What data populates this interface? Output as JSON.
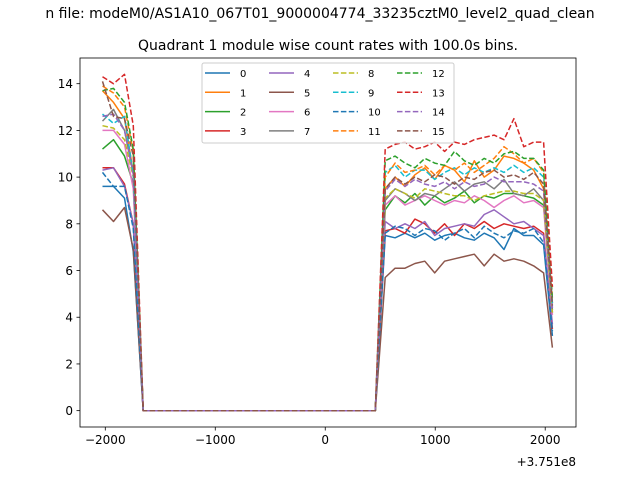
{
  "figure": {
    "suptitle": "n file: modeM0/AS1A10_067T01_9000004774_33235cztM0_level2_quad_clean"
  },
  "chart_data": {
    "type": "line",
    "title": "Quadrant 1 module wise count rates with 100.0s bins.",
    "xlabel": "",
    "ylabel": "",
    "x_offset_label": "+3.751e8",
    "xlim": [
      -2230,
      2280
    ],
    "ylim": [
      -0.7,
      15.1
    ],
    "xticks": [
      -2000,
      -1000,
      0,
      1000,
      2000
    ],
    "xtick_labels": [
      "−2000",
      "−1000",
      "0",
      "1000",
      "2000"
    ],
    "yticks": [
      0,
      2,
      4,
      6,
      8,
      10,
      12,
      14
    ],
    "ytick_labels": [
      "0",
      "2",
      "4",
      "6",
      "8",
      "10",
      "12",
      "14"
    ],
    "grid": false,
    "legend": {
      "placement": "top-center",
      "columns": 4
    },
    "x": [
      -2025,
      -1925,
      -1825,
      -1745,
      -1655,
      -1555,
      -1455,
      -1355,
      -1255,
      -1155,
      -1055,
      -955,
      -855,
      -755,
      -655,
      -555,
      -455,
      -355,
      -255,
      -155,
      -55,
      45,
      145,
      245,
      345,
      455,
      545,
      635,
      725,
      815,
      905,
      995,
      1085,
      1175,
      1265,
      1355,
      1445,
      1535,
      1625,
      1715,
      1805,
      1895,
      1985,
      2065
    ],
    "series": [
      {
        "name": "0",
        "color": "#1f77b4",
        "dash": "solid",
        "values": [
          9.6,
          9.6,
          9.1,
          6.8,
          0,
          0,
          0,
          0,
          0,
          0,
          0,
          0,
          0,
          0,
          0,
          0,
          0,
          0,
          0,
          0,
          0,
          0,
          0,
          0,
          0,
          0,
          7.5,
          7.4,
          7.6,
          7.4,
          7.6,
          7.3,
          7.5,
          7.6,
          7.4,
          7.3,
          7.6,
          7.4,
          6.9,
          7.8,
          7.5,
          7.5,
          7.1,
          3.2
        ]
      },
      {
        "name": "1",
        "color": "#ff7f0e",
        "dash": "solid",
        "values": [
          13.7,
          13.2,
          12.5,
          10.2,
          0,
          0,
          0,
          0,
          0,
          0,
          0,
          0,
          0,
          0,
          0,
          0,
          0,
          0,
          0,
          0,
          0,
          0,
          0,
          0,
          0,
          0,
          9.5,
          10.0,
          9.6,
          10.1,
          10.4,
          9.9,
          10.5,
          10.3,
          9.8,
          10.7,
          10.0,
          10.3,
          10.9,
          10.8,
          10.6,
          10.3,
          9.5,
          4.6
        ]
      },
      {
        "name": "2",
        "color": "#2ca02c",
        "dash": "solid",
        "values": [
          11.2,
          11.6,
          10.9,
          9.7,
          0,
          0,
          0,
          0,
          0,
          0,
          0,
          0,
          0,
          0,
          0,
          0,
          0,
          0,
          0,
          0,
          0,
          0,
          0,
          0,
          0,
          0,
          8.6,
          9.2,
          8.9,
          9.3,
          8.8,
          9.2,
          8.9,
          9.1,
          9.4,
          8.9,
          9.2,
          9.1,
          9.3,
          9.3,
          9.2,
          9.1,
          8.8,
          4.3
        ]
      },
      {
        "name": "3",
        "color": "#d62728",
        "dash": "solid",
        "values": [
          10.4,
          10.4,
          9.7,
          8.0,
          0,
          0,
          0,
          0,
          0,
          0,
          0,
          0,
          0,
          0,
          0,
          0,
          0,
          0,
          0,
          0,
          0,
          0,
          0,
          0,
          0,
          0,
          7.7,
          7.8,
          7.6,
          8.2,
          8.0,
          7.6,
          8.0,
          7.5,
          8.0,
          7.8,
          8.1,
          7.8,
          8.0,
          7.9,
          7.8,
          7.9,
          7.6,
          3.5
        ]
      },
      {
        "name": "4",
        "color": "#9467bd",
        "dash": "solid",
        "values": [
          10.3,
          10.4,
          9.6,
          8.0,
          0,
          0,
          0,
          0,
          0,
          0,
          0,
          0,
          0,
          0,
          0,
          0,
          0,
          0,
          0,
          0,
          0,
          0,
          0,
          0,
          0,
          0,
          8.1,
          7.8,
          8.0,
          7.8,
          8.1,
          7.5,
          7.8,
          7.9,
          8.0,
          7.9,
          8.4,
          8.6,
          8.3,
          8.0,
          8.1,
          7.8,
          7.5,
          3.7
        ]
      },
      {
        "name": "5",
        "color": "#8c564b",
        "dash": "solid",
        "values": [
          8.6,
          8.1,
          8.7,
          6.9,
          0,
          0,
          0,
          0,
          0,
          0,
          0,
          0,
          0,
          0,
          0,
          0,
          0,
          0,
          0,
          0,
          0,
          0,
          0,
          0,
          0,
          0,
          5.7,
          6.1,
          6.1,
          6.3,
          6.4,
          5.9,
          6.4,
          6.5,
          6.6,
          6.7,
          6.2,
          6.7,
          6.4,
          6.5,
          6.4,
          6.2,
          5.9,
          2.7
        ]
      },
      {
        "name": "6",
        "color": "#e377c2",
        "dash": "solid",
        "values": [
          12.0,
          12.0,
          11.4,
          9.5,
          0,
          0,
          0,
          0,
          0,
          0,
          0,
          0,
          0,
          0,
          0,
          0,
          0,
          0,
          0,
          0,
          0,
          0,
          0,
          0,
          0,
          0,
          8.8,
          9.2,
          8.8,
          9.0,
          9.2,
          9.0,
          8.8,
          9.0,
          8.9,
          9.2,
          9.0,
          8.7,
          9.0,
          9.2,
          8.9,
          9.0,
          8.7,
          4.1
        ]
      },
      {
        "name": "7",
        "color": "#7f7f7f",
        "dash": "solid",
        "values": [
          12.4,
          12.9,
          12.0,
          10.2,
          0,
          0,
          0,
          0,
          0,
          0,
          0,
          0,
          0,
          0,
          0,
          0,
          0,
          0,
          0,
          0,
          0,
          0,
          0,
          0,
          0,
          0,
          9.0,
          9.5,
          9.3,
          9.0,
          9.3,
          9.2,
          9.5,
          9.8,
          9.4,
          9.7,
          9.8,
          9.5,
          9.9,
          9.3,
          9.2,
          9.5,
          9.0,
          4.2
        ]
      },
      {
        "name": "8",
        "color": "#bcbd22",
        "dash": "dashed",
        "values": [
          12.2,
          12.1,
          11.6,
          10.0,
          0,
          0,
          0,
          0,
          0,
          0,
          0,
          0,
          0,
          0,
          0,
          0,
          0,
          0,
          0,
          0,
          0,
          0,
          0,
          0,
          0,
          0,
          9.1,
          9.5,
          9.3,
          9.1,
          9.5,
          9.4,
          9.3,
          9.2,
          9.2,
          9.0,
          9.2,
          9.3,
          9.4,
          9.4,
          9.3,
          9.3,
          9.0,
          4.2
        ]
      },
      {
        "name": "9",
        "color": "#17becf",
        "dash": "dashed",
        "values": [
          12.7,
          12.3,
          12.6,
          10.1,
          0,
          0,
          0,
          0,
          0,
          0,
          0,
          0,
          0,
          0,
          0,
          0,
          0,
          0,
          0,
          0,
          0,
          0,
          0,
          0,
          0,
          0,
          10.2,
          10.5,
          10.0,
          10.3,
          10.3,
          9.9,
          10.2,
          10.4,
          10.1,
          10.4,
          10.2,
          10.4,
          10.2,
          10.5,
          10.2,
          10.4,
          10.0,
          4.6
        ]
      },
      {
        "name": "10",
        "color": "#1f77b4",
        "dash": "dashed",
        "values": [
          10.2,
          9.6,
          9.6,
          7.8,
          0,
          0,
          0,
          0,
          0,
          0,
          0,
          0,
          0,
          0,
          0,
          0,
          0,
          0,
          0,
          0,
          0,
          0,
          0,
          0,
          0,
          0,
          7.6,
          7.9,
          7.8,
          7.5,
          7.8,
          7.7,
          7.3,
          7.6,
          7.8,
          7.4,
          7.9,
          7.6,
          7.4,
          7.7,
          7.6,
          7.8,
          7.2,
          3.4
        ]
      },
      {
        "name": "11",
        "color": "#ff7f0e",
        "dash": "dashed",
        "values": [
          13.9,
          13.6,
          13.0,
          11.1,
          0,
          0,
          0,
          0,
          0,
          0,
          0,
          0,
          0,
          0,
          0,
          0,
          0,
          0,
          0,
          0,
          0,
          0,
          0,
          0,
          0,
          0,
          10.0,
          10.6,
          10.2,
          10.3,
          10.5,
          10.1,
          10.5,
          10.3,
          10.6,
          10.2,
          10.5,
          10.8,
          11.3,
          11.0,
          10.6,
          10.8,
          10.2,
          4.8
        ]
      },
      {
        "name": "12",
        "color": "#2ca02c",
        "dash": "dashed",
        "values": [
          13.7,
          13.8,
          13.2,
          11.2,
          0,
          0,
          0,
          0,
          0,
          0,
          0,
          0,
          0,
          0,
          0,
          0,
          0,
          0,
          0,
          0,
          0,
          0,
          0,
          0,
          0,
          0,
          10.7,
          10.9,
          10.6,
          10.4,
          10.8,
          10.6,
          10.5,
          11.1,
          10.7,
          10.5,
          10.8,
          10.6,
          11.0,
          11.1,
          10.8,
          10.8,
          10.3,
          4.8
        ]
      },
      {
        "name": "13",
        "color": "#d62728",
        "dash": "dashed",
        "values": [
          14.3,
          14.0,
          14.4,
          12.2,
          0,
          0,
          0,
          0,
          0,
          0,
          0,
          0,
          0,
          0,
          0,
          0,
          0,
          0,
          0,
          0,
          0,
          0,
          0,
          0,
          0,
          0,
          11.2,
          11.4,
          11.5,
          11.2,
          11.3,
          11.5,
          11.1,
          11.5,
          11.4,
          11.6,
          11.7,
          11.8,
          11.6,
          12.5,
          11.3,
          11.5,
          11.5,
          5.3
        ]
      },
      {
        "name": "14",
        "color": "#9467bd",
        "dash": "dashed",
        "values": [
          12.6,
          12.7,
          12.0,
          10.1,
          0,
          0,
          0,
          0,
          0,
          0,
          0,
          0,
          0,
          0,
          0,
          0,
          0,
          0,
          0,
          0,
          0,
          0,
          0,
          0,
          0,
          0,
          9.4,
          9.9,
          9.6,
          9.9,
          9.7,
          9.6,
          9.8,
          9.5,
          9.8,
          9.6,
          9.7,
          10.0,
          9.8,
          9.8,
          9.8,
          9.7,
          9.4,
          4.4
        ]
      },
      {
        "name": "15",
        "color": "#8c564b",
        "dash": "dashed",
        "values": [
          14.1,
          12.6,
          12.5,
          10.9,
          0,
          0,
          0,
          0,
          0,
          0,
          0,
          0,
          0,
          0,
          0,
          0,
          0,
          0,
          0,
          0,
          0,
          0,
          0,
          0,
          0,
          0,
          9.5,
          10.0,
          9.7,
          10.0,
          9.8,
          10.1,
          10.0,
          9.7,
          10.0,
          9.9,
          10.2,
          10.3,
          10.0,
          10.1,
          9.9,
          10.2,
          9.7,
          4.5
        ]
      }
    ]
  }
}
